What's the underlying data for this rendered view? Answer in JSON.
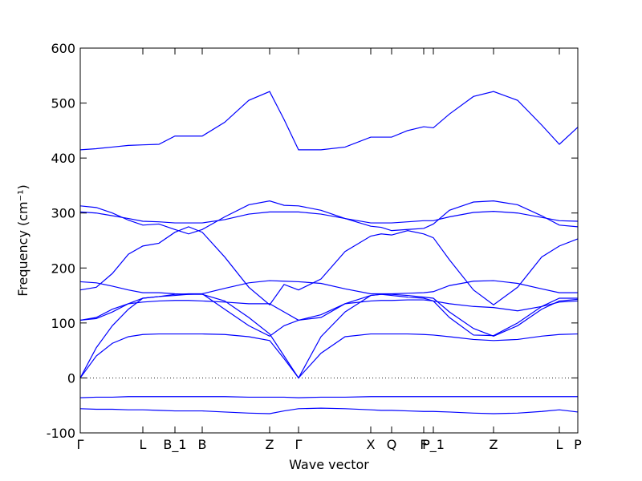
{
  "chart_data": {
    "type": "line",
    "xlabel": "Wave vector",
    "ylabel": "Frequency (cm⁻¹)",
    "color": "#0000ff",
    "hline": 0,
    "xlim": [
      0,
      620
    ],
    "ylim": [
      -100,
      600
    ],
    "yticks": [
      -100,
      0,
      100,
      200,
      300,
      400,
      500,
      600
    ],
    "xticks": [
      {
        "value": 0,
        "label": "Γ"
      },
      {
        "value": 78,
        "label": "L"
      },
      {
        "value": 118,
        "label": "B_1"
      },
      {
        "value": 152,
        "label": "B"
      },
      {
        "value": 236,
        "label": "Z"
      },
      {
        "value": 272,
        "label": "Γ"
      },
      {
        "value": 362,
        "label": "X"
      },
      {
        "value": 388,
        "label": "Q"
      },
      {
        "value": 428,
        "label": "F"
      },
      {
        "value": 440,
        "label": "P_1"
      },
      {
        "value": 515,
        "label": "Z"
      },
      {
        "value": 597,
        "label": "L"
      },
      {
        "value": 620,
        "label": "P"
      }
    ],
    "x": [
      0,
      20,
      40,
      60,
      78,
      98,
      118,
      135,
      152,
      180,
      210,
      236,
      254,
      272,
      300,
      330,
      362,
      375,
      388,
      408,
      428,
      440,
      460,
      490,
      515,
      545,
      575,
      597,
      620
    ],
    "series": [
      {
        "values": [
          415,
          417,
          420,
          423,
          424,
          425,
          440,
          440,
          440,
          465,
          505,
          521,
          470,
          415,
          415,
          420,
          438,
          438,
          438,
          450,
          457,
          455,
          480,
          512,
          521,
          505,
          460,
          425,
          456
        ]
      },
      {
        "values": [
          313,
          310,
          300,
          287,
          278,
          280,
          270,
          262,
          270,
          293,
          315,
          322,
          314,
          313,
          305,
          290,
          276,
          274,
          268,
          270,
          272,
          280,
          305,
          320,
          322,
          315,
          295,
          278,
          275
        ]
      },
      {
        "values": [
          302,
          300,
          295,
          290,
          285,
          284,
          282,
          282,
          282,
          288,
          298,
          302,
          302,
          302,
          298,
          290,
          282,
          282,
          282,
          284,
          286,
          286,
          293,
          301,
          303,
          300,
          292,
          286,
          285
        ]
      },
      {
        "values": [
          160,
          165,
          190,
          225,
          240,
          245,
          265,
          275,
          265,
          220,
          165,
          133,
          170,
          160,
          180,
          230,
          258,
          262,
          260,
          268,
          262,
          255,
          215,
          160,
          133,
          165,
          220,
          240,
          253
        ]
      },
      {
        "values": [
          175,
          173,
          167,
          160,
          155,
          155,
          153,
          152,
          153,
          163,
          173,
          177,
          176,
          175,
          172,
          162,
          153,
          153,
          153,
          154,
          155,
          157,
          168,
          176,
          177,
          172,
          162,
          155,
          155
        ]
      },
      {
        "values": [
          105,
          108,
          120,
          135,
          145,
          148,
          152,
          153,
          153,
          125,
          95,
          76,
          95,
          105,
          110,
          135,
          150,
          152,
          150,
          147,
          145,
          140,
          110,
          78,
          77,
          100,
          130,
          145,
          145
        ]
      },
      {
        "values": [
          105,
          110,
          125,
          135,
          138,
          140,
          141,
          141,
          140,
          138,
          135,
          135,
          120,
          105,
          115,
          135,
          140,
          141,
          141,
          142,
          142,
          140,
          135,
          130,
          128,
          122,
          130,
          138,
          140
        ]
      },
      {
        "values": [
          0,
          40,
          63,
          75,
          79,
          80,
          80,
          80,
          80,
          79,
          75,
          68,
          35,
          0,
          45,
          75,
          80,
          80,
          80,
          80,
          79,
          78,
          75,
          70,
          68,
          70,
          76,
          79,
          80
        ]
      },
      {
        "values": [
          0,
          55,
          95,
          125,
          145,
          148,
          150,
          152,
          152,
          140,
          110,
          80,
          40,
          0,
          75,
          120,
          150,
          152,
          152,
          150,
          147,
          145,
          120,
          90,
          76,
          95,
          125,
          140,
          143
        ]
      },
      {
        "values": [
          -36,
          -35,
          -35,
          -34,
          -34,
          -34,
          -34,
          -34,
          -34,
          -34,
          -35,
          -35,
          -35,
          -36,
          -35,
          -35,
          -34,
          -34,
          -34,
          -34,
          -34,
          -34,
          -34,
          -34,
          -34,
          -34,
          -34,
          -34,
          -34
        ]
      },
      {
        "values": [
          -56,
          -57,
          -57,
          -58,
          -58,
          -59,
          -60,
          -60,
          -60,
          -62,
          -64,
          -65,
          -60,
          -56,
          -55,
          -56,
          -58,
          -59,
          -59,
          -60,
          -61,
          -61,
          -62,
          -64,
          -65,
          -64,
          -61,
          -58,
          -62
        ]
      }
    ]
  }
}
